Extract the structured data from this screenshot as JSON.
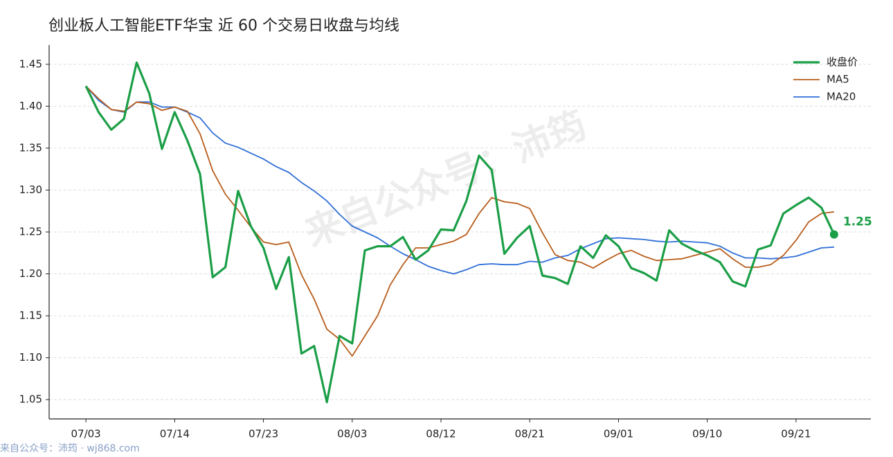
{
  "chart_data": {
    "type": "line",
    "title": "创业板人工智能ETF华宝 近 60 个交易日收盘与均线",
    "watermark": "来自公众号：沛筠",
    "footer": "来自公众号：沛筠 · wj868.com",
    "categories": [
      "07/03",
      null,
      null,
      null,
      null,
      null,
      null,
      "07/14",
      null,
      null,
      null,
      null,
      null,
      null,
      "07/23",
      null,
      null,
      null,
      null,
      null,
      null,
      "08/03",
      null,
      null,
      null,
      null,
      null,
      null,
      "08/12",
      null,
      null,
      null,
      null,
      null,
      null,
      "08/21",
      null,
      null,
      null,
      null,
      null,
      null,
      "09/01",
      null,
      null,
      null,
      null,
      null,
      null,
      "09/10",
      null,
      null,
      null,
      null,
      null,
      null,
      "09/21",
      null,
      null,
      null
    ],
    "ylim": [
      1.027,
      1.473
    ],
    "yticks": [
      1.05,
      {
        "value": 1.1,
        "label": "1.10"
      },
      1.15,
      {
        "value": 1.2,
        "label": "1.20"
      },
      1.25,
      {
        "value": 1.3,
        "label": "1.30"
      },
      1.35,
      {
        "value": 1.4,
        "label": "1.40"
      },
      1.45
    ],
    "grid": true,
    "legend": "upper right",
    "series": [
      {
        "name": "收盘价",
        "color": "#1a9e46",
        "width": 3.2,
        "values": [
          1.424,
          1.393,
          1.372,
          1.385,
          1.452,
          1.415,
          1.349,
          1.393,
          1.359,
          1.319,
          1.196,
          1.208,
          1.299,
          1.257,
          1.231,
          1.182,
          1.22,
          1.105,
          1.114,
          1.047,
          1.126,
          1.117,
          1.228,
          1.233,
          1.233,
          1.244,
          1.217,
          1.228,
          1.253,
          1.252,
          1.287,
          1.341,
          1.324,
          1.224,
          1.243,
          1.257,
          1.198,
          1.195,
          1.188,
          1.233,
          1.219,
          1.246,
          1.233,
          1.207,
          1.201,
          1.192,
          1.252,
          1.236,
          1.228,
          1.222,
          1.214,
          1.191,
          1.185,
          1.229,
          1.234,
          1.272,
          1.282,
          1.291,
          1.279,
          1.247
        ],
        "value_labels": [
          null,
          null,
          null,
          null,
          null,
          null,
          null,
          null,
          null,
          null,
          null,
          null,
          null,
          null,
          null,
          null,
          null,
          null,
          null,
          null,
          null,
          null,
          null,
          null,
          null,
          null,
          null,
          null,
          null,
          null,
          null,
          null,
          null,
          null,
          null,
          null,
          null,
          null,
          null,
          null,
          null,
          null,
          null,
          null,
          null,
          null,
          null,
          null,
          null,
          null,
          null,
          null,
          null,
          null,
          null,
          null,
          null,
          null,
          null,
          "1.25"
        ]
      },
      {
        "name": "MA5",
        "color": "#b85c1a",
        "width": 1.8,
        "values": [
          1.424,
          1.409,
          1.396,
          1.394,
          1.405,
          1.403,
          1.395,
          1.399,
          1.394,
          1.367,
          1.323,
          1.295,
          1.276,
          1.256,
          1.238,
          1.235,
          1.238,
          1.199,
          1.17,
          1.134,
          1.122,
          1.102,
          1.126,
          1.15,
          1.187,
          1.211,
          1.231,
          1.231,
          1.235,
          1.239,
          1.247,
          1.272,
          1.291,
          1.286,
          1.284,
          1.278,
          1.249,
          1.223,
          1.216,
          1.214,
          1.207,
          1.216,
          1.224,
          1.228,
          1.221,
          1.216,
          1.217,
          1.218,
          1.222,
          1.226,
          1.23,
          1.218,
          1.208,
          1.208,
          1.211,
          1.222,
          1.24,
          1.262,
          1.272,
          1.274
        ]
      },
      {
        "name": "MA20",
        "color": "#2f6fd8",
        "width": 1.8,
        "values": [
          1.424,
          1.407,
          1.396,
          1.393,
          1.405,
          1.405,
          1.399,
          1.399,
          1.393,
          1.386,
          1.368,
          1.356,
          1.351,
          1.344,
          1.337,
          1.328,
          1.321,
          1.309,
          1.299,
          1.287,
          1.271,
          1.257,
          1.25,
          1.243,
          1.233,
          1.224,
          1.217,
          1.209,
          1.204,
          1.2,
          1.205,
          1.211,
          1.212,
          1.211,
          1.211,
          1.215,
          1.214,
          1.219,
          1.222,
          1.23,
          1.236,
          1.242,
          1.243,
          1.242,
          1.241,
          1.239,
          1.238,
          1.239,
          1.238,
          1.237,
          1.233,
          1.225,
          1.219,
          1.219,
          1.218,
          1.219,
          1.221,
          1.226,
          1.231,
          1.232
        ]
      }
    ]
  }
}
